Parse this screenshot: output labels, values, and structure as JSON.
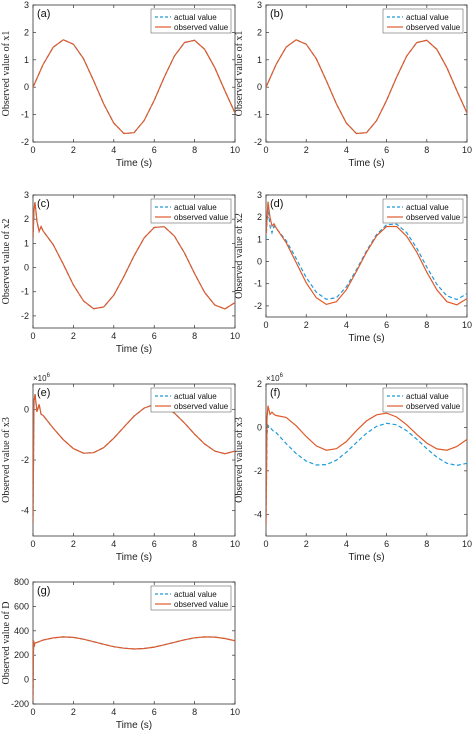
{
  "figure": {
    "axis_color": "#333333"
  },
  "chart_data": [
    {
      "panel": "(a)",
      "type": "line",
      "xlabel": "Time (s)",
      "ylabel": "Observed value of x1",
      "xlim": [
        0,
        10
      ],
      "ylim": [
        -2,
        3
      ],
      "xticks": [
        "0",
        "2",
        "4",
        "6",
        "8",
        "10"
      ],
      "yticks": [
        "-2",
        "-1",
        "0",
        "1",
        "2",
        "3"
      ],
      "exponent": "",
      "legend": {
        "position": "top-right",
        "entries": [
          "actual value",
          "observed value"
        ]
      },
      "series": [
        {
          "name": "actual value",
          "color": "#1f9bd8",
          "style": "dashed",
          "x": [
            0,
            0.5,
            1,
            1.5,
            2,
            2.5,
            3,
            3.5,
            4,
            4.5,
            5,
            5.5,
            6,
            6.5,
            7,
            7.5,
            8,
            8.5,
            9,
            9.5,
            10
          ],
          "y": [
            0,
            0.83,
            1.46,
            1.73,
            1.57,
            1.04,
            0.24,
            -0.61,
            -1.31,
            -1.69,
            -1.66,
            -1.22,
            -0.48,
            0.37,
            1.14,
            1.63,
            1.71,
            1.38,
            0.71,
            -0.13,
            -0.94
          ]
        },
        {
          "name": "observed value",
          "color": "#e05a2b",
          "style": "solid",
          "x": [
            0,
            0.5,
            1,
            1.5,
            2,
            2.5,
            3,
            3.5,
            4,
            4.5,
            5,
            5.5,
            6,
            6.5,
            7,
            7.5,
            8,
            8.5,
            9,
            9.5,
            10
          ],
          "y": [
            0,
            0.83,
            1.46,
            1.73,
            1.57,
            1.04,
            0.24,
            -0.61,
            -1.31,
            -1.69,
            -1.66,
            -1.22,
            -0.48,
            0.37,
            1.14,
            1.63,
            1.71,
            1.38,
            0.71,
            -0.13,
            -0.94
          ]
        }
      ]
    },
    {
      "panel": "(b)",
      "type": "line",
      "xlabel": "Time (s)",
      "ylabel": "Observed value of x1",
      "xlim": [
        0,
        10
      ],
      "ylim": [
        -2,
        3
      ],
      "xticks": [
        "0",
        "2",
        "4",
        "6",
        "8",
        "10"
      ],
      "yticks": [
        "-2",
        "-1",
        "0",
        "1",
        "2",
        "3"
      ],
      "exponent": "",
      "legend": {
        "position": "top-right",
        "entries": [
          "actual value",
          "observed value"
        ]
      },
      "series": [
        {
          "name": "actual value",
          "color": "#1f9bd8",
          "style": "dashed",
          "x": [
            0,
            0.5,
            1,
            1.5,
            2,
            2.5,
            3,
            3.5,
            4,
            4.5,
            5,
            5.5,
            6,
            6.5,
            7,
            7.5,
            8,
            8.5,
            9,
            9.5,
            10
          ],
          "y": [
            0,
            0.83,
            1.46,
            1.73,
            1.57,
            1.04,
            0.24,
            -0.61,
            -1.31,
            -1.69,
            -1.66,
            -1.22,
            -0.48,
            0.37,
            1.14,
            1.63,
            1.71,
            1.38,
            0.71,
            -0.13,
            -0.94
          ]
        },
        {
          "name": "observed value",
          "color": "#e05a2b",
          "style": "solid",
          "x": [
            0,
            0.5,
            1,
            1.5,
            2,
            2.5,
            3,
            3.5,
            4,
            4.5,
            5,
            5.5,
            6,
            6.5,
            7,
            7.5,
            8,
            8.5,
            9,
            9.5,
            10
          ],
          "y": [
            0,
            0.83,
            1.46,
            1.73,
            1.57,
            1.04,
            0.24,
            -0.61,
            -1.31,
            -1.69,
            -1.66,
            -1.22,
            -0.48,
            0.37,
            1.14,
            1.63,
            1.71,
            1.38,
            0.71,
            -0.13,
            -0.94
          ]
        }
      ]
    },
    {
      "panel": "(c)",
      "type": "line",
      "xlabel": "Time (s)",
      "ylabel": "Observed value of x2",
      "xlim": [
        0,
        10
      ],
      "ylim": [
        -2.5,
        3
      ],
      "xticks": [
        "0",
        "2",
        "4",
        "6",
        "8",
        "10"
      ],
      "yticks": [
        "-2",
        "-1",
        "0",
        "1",
        "2",
        "3"
      ],
      "exponent": "",
      "legend": {
        "position": "top-right",
        "entries": [
          "actual value",
          "observed value"
        ]
      },
      "series": [
        {
          "name": "actual value",
          "color": "#1f9bd8",
          "style": "dashed",
          "x": [
            0,
            0.05,
            0.1,
            0.2,
            0.3,
            0.4,
            0.5,
            1,
            1.5,
            2,
            2.5,
            3,
            3.5,
            4,
            4.5,
            5,
            5.5,
            6,
            6.5,
            7,
            7.5,
            8,
            8.5,
            9,
            9.5,
            10
          ],
          "y": [
            1.2,
            2.4,
            2.7,
            1.9,
            1.5,
            1.7,
            1.51,
            0.95,
            0.14,
            -0.72,
            -1.38,
            -1.7,
            -1.63,
            -1.14,
            -0.37,
            0.48,
            1.22,
            1.66,
            1.69,
            1.3,
            0.6,
            -0.25,
            -1.03,
            -1.55,
            -1.71,
            -1.45
          ]
        },
        {
          "name": "observed value",
          "color": "#e05a2b",
          "style": "solid",
          "x": [
            0,
            0.05,
            0.1,
            0.2,
            0.3,
            0.4,
            0.5,
            1,
            1.5,
            2,
            2.5,
            3,
            3.5,
            4,
            4.5,
            5,
            5.5,
            6,
            6.5,
            7,
            7.5,
            8,
            8.5,
            9,
            9.5,
            10
          ],
          "y": [
            1.2,
            2.4,
            2.7,
            1.9,
            1.5,
            1.7,
            1.51,
            0.95,
            0.14,
            -0.72,
            -1.38,
            -1.7,
            -1.63,
            -1.14,
            -0.37,
            0.48,
            1.22,
            1.66,
            1.69,
            1.3,
            0.6,
            -0.25,
            -1.03,
            -1.55,
            -1.71,
            -1.45
          ]
        }
      ]
    },
    {
      "panel": "(d)",
      "type": "line",
      "xlabel": "Time (s)",
      "ylabel": "Observed value of x2",
      "xlim": [
        0,
        10
      ],
      "ylim": [
        -2.5,
        3
      ],
      "xticks": [
        "0",
        "2",
        "4",
        "6",
        "8",
        "10"
      ],
      "yticks": [
        "-2",
        "-1",
        "0",
        "1",
        "2",
        "3"
      ],
      "exponent": "",
      "legend": {
        "position": "top-right",
        "entries": [
          "actual value",
          "observed value"
        ]
      },
      "series": [
        {
          "name": "actual value",
          "color": "#1f9bd8",
          "style": "dashed",
          "x": [
            0,
            0.1,
            0.2,
            0.3,
            0.4,
            0.5,
            1,
            1.5,
            2,
            2.5,
            3,
            3.5,
            4,
            4.5,
            5,
            5.5,
            6,
            6.5,
            7,
            7.5,
            8,
            8.5,
            9,
            9.5,
            10
          ],
          "y": [
            1.0,
            2.5,
            1.6,
            1.3,
            1.6,
            1.51,
            0.95,
            0.14,
            -0.72,
            -1.38,
            -1.7,
            -1.63,
            -1.14,
            -0.37,
            0.48,
            1.22,
            1.66,
            1.69,
            1.3,
            0.6,
            -0.25,
            -1.03,
            -1.55,
            -1.71,
            -1.45
          ]
        },
        {
          "name": "observed value",
          "color": "#e05a2b",
          "style": "solid",
          "x": [
            0,
            0.1,
            0.2,
            0.3,
            0.4,
            0.5,
            1,
            1.5,
            2,
            2.5,
            3,
            3.5,
            4,
            4.5,
            5,
            5.5,
            6,
            6.5,
            7,
            7.5,
            8,
            8.5,
            9,
            9.5,
            10
          ],
          "y": [
            1.2,
            2.7,
            2.0,
            1.6,
            1.7,
            1.52,
            0.86,
            -0.04,
            -0.96,
            -1.63,
            -1.93,
            -1.81,
            -1.27,
            -0.45,
            0.42,
            1.16,
            1.58,
            1.58,
            1.14,
            0.42,
            -0.48,
            -1.28,
            -1.81,
            -1.95,
            -1.67
          ]
        }
      ]
    },
    {
      "panel": "(e)",
      "type": "line",
      "xlabel": "Time (s)",
      "ylabel": "Observed value of x3",
      "xlim": [
        0,
        10
      ],
      "ylim": [
        -5,
        1
      ],
      "xticks": [
        "0",
        "2",
        "4",
        "6",
        "8",
        "10"
      ],
      "yticks": [
        "-4",
        "-2",
        "0"
      ],
      "exponent": "×10^6",
      "legend": {
        "position": "top-right",
        "entries": [
          "actual value",
          "observed value"
        ]
      },
      "series": [
        {
          "name": "actual value",
          "color": "#1f9bd8",
          "style": "dashed",
          "x": [
            0,
            0.05,
            0.1,
            0.2,
            0.3,
            0.4,
            0.5,
            1,
            1.5,
            2,
            2.5,
            3,
            3.5,
            4,
            4.5,
            5,
            5.5,
            6,
            6.5,
            7,
            7.5,
            8,
            8.5,
            9,
            9.5,
            10
          ],
          "y": [
            -4.5,
            0.3,
            0.6,
            -0.1,
            0.2,
            -0.2,
            -0.24,
            -0.74,
            -1.2,
            -1.55,
            -1.73,
            -1.71,
            -1.51,
            -1.14,
            -0.7,
            -0.27,
            0.05,
            0.19,
            0.12,
            -0.15,
            -0.54,
            -0.98,
            -1.37,
            -1.65,
            -1.75,
            -1.65
          ]
        },
        {
          "name": "observed value",
          "color": "#e05a2b",
          "style": "solid",
          "x": [
            0,
            0.05,
            0.1,
            0.2,
            0.3,
            0.4,
            0.5,
            1,
            1.5,
            2,
            2.5,
            3,
            3.5,
            4,
            4.5,
            5,
            5.5,
            6,
            6.5,
            7,
            7.5,
            8,
            8.5,
            9,
            9.5,
            10
          ],
          "y": [
            -4.5,
            0.3,
            0.6,
            -0.1,
            0.2,
            -0.2,
            -0.24,
            -0.74,
            -1.2,
            -1.55,
            -1.73,
            -1.71,
            -1.51,
            -1.14,
            -0.7,
            -0.27,
            0.05,
            0.19,
            0.12,
            -0.15,
            -0.54,
            -0.98,
            -1.37,
            -1.65,
            -1.75,
            -1.65
          ]
        }
      ]
    },
    {
      "panel": "(f)",
      "type": "line",
      "xlabel": "Time (s)",
      "ylabel": "Observed value of x3",
      "xlim": [
        0,
        10
      ],
      "ylim": [
        -5,
        2
      ],
      "xticks": [
        "0",
        "2",
        "4",
        "6",
        "8",
        "10"
      ],
      "yticks": [
        "-4",
        "-2",
        "0",
        "2"
      ],
      "exponent": "×10^6",
      "legend": {
        "position": "top-right",
        "entries": [
          "actual value",
          "observed value"
        ]
      },
      "series": [
        {
          "name": "actual value",
          "color": "#1f9bd8",
          "style": "dashed",
          "x": [
            0,
            0.05,
            0.1,
            0.2,
            0.3,
            0.4,
            0.5,
            1,
            1.5,
            2,
            2.5,
            3,
            3.5,
            4,
            4.5,
            5,
            5.5,
            6,
            6.5,
            7,
            7.5,
            8,
            8.5,
            9,
            9.5,
            10
          ],
          "y": [
            -4.5,
            -0.3,
            0.1,
            0.0,
            -0.1,
            -0.2,
            -0.24,
            -0.74,
            -1.2,
            -1.55,
            -1.73,
            -1.71,
            -1.51,
            -1.14,
            -0.7,
            -0.27,
            0.05,
            0.19,
            0.12,
            -0.15,
            -0.54,
            -0.98,
            -1.37,
            -1.65,
            -1.75,
            -1.65
          ]
        },
        {
          "name": "observed value",
          "color": "#e05a2b",
          "style": "solid",
          "x": [
            0,
            0.05,
            0.1,
            0.2,
            0.3,
            0.4,
            0.5,
            1,
            1.5,
            2,
            2.5,
            3,
            3.5,
            4,
            4.5,
            5,
            5.5,
            6,
            6.5,
            7,
            7.5,
            8,
            8.5,
            9,
            9.5,
            10
          ],
          "y": [
            -4.5,
            0.4,
            1.0,
            0.6,
            0.7,
            0.6,
            0.55,
            0.46,
            0.08,
            -0.42,
            -0.85,
            -1.05,
            -0.98,
            -0.65,
            -0.15,
            0.3,
            0.58,
            0.66,
            0.48,
            0.12,
            -0.32,
            -0.72,
            -0.99,
            -1.05,
            -0.88,
            -0.55
          ]
        }
      ]
    },
    {
      "panel": "(g)",
      "type": "line",
      "xlabel": "Time (s)",
      "ylabel": "Observed value of D",
      "xlim": [
        0,
        10
      ],
      "ylim": [
        -200,
        800
      ],
      "xticks": [
        "0",
        "2",
        "4",
        "6",
        "8",
        "10"
      ],
      "yticks": [
        "-200",
        "0",
        "200",
        "400",
        "600",
        "800"
      ],
      "exponent": "",
      "legend": {
        "position": "top-right",
        "entries": [
          "actual value",
          "observed value"
        ]
      },
      "series": [
        {
          "name": "actual value",
          "color": "#1f9bd8",
          "style": "dashed",
          "x": [
            0,
            0.03,
            0.06,
            0.1,
            0.2,
            0.5,
            1,
            1.5,
            2,
            2.5,
            3,
            3.5,
            4,
            4.5,
            5,
            5.5,
            6,
            6.5,
            7,
            7.5,
            8,
            8.5,
            9,
            9.5,
            10
          ],
          "y": [
            -180,
            320,
            270,
            300,
            305,
            324,
            342,
            350,
            346,
            331,
            311,
            289,
            270,
            257,
            251,
            255,
            266,
            285,
            306,
            326,
            343,
            350,
            348,
            337,
            318
          ]
        },
        {
          "name": "observed value",
          "color": "#e05a2b",
          "style": "solid",
          "x": [
            0,
            0.03,
            0.06,
            0.1,
            0.2,
            0.5,
            1,
            1.5,
            2,
            2.5,
            3,
            3.5,
            4,
            4.5,
            5,
            5.5,
            6,
            6.5,
            7,
            7.5,
            8,
            8.5,
            9,
            9.5,
            10
          ],
          "y": [
            -180,
            320,
            270,
            300,
            305,
            324,
            342,
            350,
            346,
            331,
            311,
            289,
            270,
            257,
            251,
            255,
            266,
            285,
            306,
            326,
            343,
            350,
            348,
            337,
            318
          ]
        }
      ]
    }
  ]
}
